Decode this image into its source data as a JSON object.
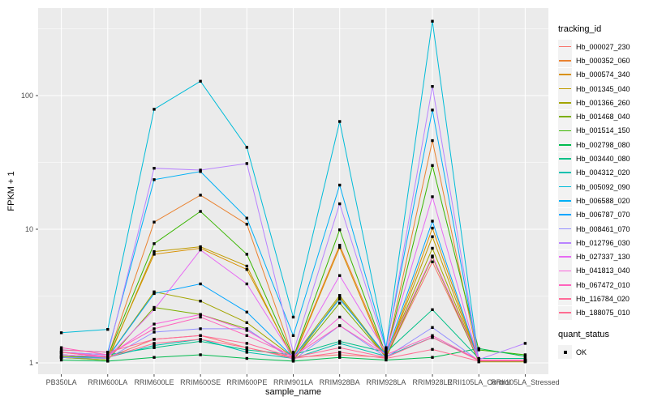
{
  "chart_data": {
    "type": "line",
    "title": "",
    "xlabel": "sample_name",
    "ylabel": "FPKM + 1",
    "y_scale": "log10",
    "y_ticks": [
      1,
      10,
      100
    ],
    "ylim": [
      0.82,
      450
    ],
    "grid": true,
    "legend_position": "right",
    "legend_title": "tracking_id",
    "panel_bg": "#EBEBEB",
    "grid_color": "#FFFFFF",
    "tick_text_color": "#4D4D4D",
    "point_color": "#000000",
    "point_shape": "square",
    "quant": {
      "title": "quant_status",
      "entries": [
        "OK"
      ]
    },
    "categories": [
      "PB350LA",
      "RRIM600LA",
      "RRIM600LE",
      "RRIM600SE",
      "RRIM600PE",
      "RRIM901LA",
      "RRIM928BA",
      "RRIM928LA",
      "RRIM928LE",
      "RRII105LA_Control",
      "RRII105LA_Stressed"
    ],
    "series": [
      {
        "name": "Hb_000027_230",
        "color": "#F8766D",
        "values": [
          1.2,
          1.1,
          1.5,
          1.6,
          1.3,
          1.1,
          1.15,
          1.1,
          5.7,
          1.05,
          1.05
        ]
      },
      {
        "name": "Hb_000352_060",
        "color": "#EA8331",
        "values": [
          1.15,
          1.1,
          11.3,
          18,
          10.9,
          1.1,
          7.6,
          1.15,
          46,
          1.03,
          1.03
        ]
      },
      {
        "name": "Hb_000574_340",
        "color": "#D89000",
        "values": [
          1.1,
          1.08,
          6.5,
          7.2,
          5.0,
          1.08,
          7.3,
          1.1,
          10.2,
          1.03,
          1.03
        ]
      },
      {
        "name": "Hb_001345_040",
        "color": "#C09B00",
        "values": [
          1.1,
          1.05,
          6.8,
          7.4,
          5.3,
          1.05,
          3.1,
          1.1,
          8.8,
          1.02,
          1.02
        ]
      },
      {
        "name": "Hb_001366_260",
        "color": "#A3A500",
        "values": [
          1.12,
          1.1,
          3.4,
          2.9,
          2.0,
          1.1,
          3.2,
          1.12,
          7.2,
          1.03,
          1.03
        ]
      },
      {
        "name": "Hb_001468_040",
        "color": "#7CAE00",
        "values": [
          1.1,
          1.05,
          2.6,
          2.3,
          1.8,
          1.05,
          2.8,
          1.1,
          6.2,
          1.02,
          1.02
        ]
      },
      {
        "name": "Hb_001514_150",
        "color": "#39B600",
        "values": [
          1.1,
          1.12,
          7.8,
          13.6,
          6.5,
          1.1,
          9.9,
          1.15,
          30,
          1.25,
          1.15
        ]
      },
      {
        "name": "Hb_002798_080",
        "color": "#00BB4E",
        "values": [
          1.05,
          1.03,
          1.1,
          1.15,
          1.08,
          1.03,
          1.1,
          1.05,
          1.1,
          1.28,
          1.12
        ]
      },
      {
        "name": "Hb_003440_080",
        "color": "#00C087",
        "values": [
          1.2,
          1.15,
          1.3,
          1.45,
          1.25,
          1.15,
          1.45,
          1.2,
          2.5,
          1.08,
          1.08
        ]
      },
      {
        "name": "Hb_004312_020",
        "color": "#00C0AF",
        "values": [
          1.1,
          1.1,
          1.35,
          1.5,
          1.2,
          1.08,
          1.4,
          1.12,
          1.55,
          1.05,
          1.05
        ]
      },
      {
        "name": "Hb_005092_090",
        "color": "#00BCD8",
        "values": [
          1.68,
          1.78,
          79,
          128,
          41,
          2.2,
          64,
          1.3,
          360,
          1.04,
          1.04
        ]
      },
      {
        "name": "Hb_006588_020",
        "color": "#00B0F6",
        "values": [
          1.25,
          1.2,
          23.5,
          27,
          12.1,
          1.6,
          21.4,
          1.3,
          78,
          1.05,
          1.05
        ]
      },
      {
        "name": "Hb_006787_070",
        "color": "#00A5FF",
        "values": [
          1.15,
          1.1,
          3.3,
          3.9,
          2.4,
          1.1,
          3.0,
          1.15,
          11.5,
          1.04,
          1.04
        ]
      },
      {
        "name": "Hb_008461_070",
        "color": "#9590FF",
        "values": [
          1.1,
          1.08,
          1.7,
          1.8,
          1.8,
          1.05,
          1.9,
          1.1,
          1.84,
          1.04,
          1.04
        ]
      },
      {
        "name": "Hb_012796_030",
        "color": "#B983FF",
        "values": [
          1.2,
          1.15,
          28.6,
          27.7,
          31,
          1.2,
          15.5,
          1.25,
          117,
          1.06,
          1.4
        ]
      },
      {
        "name": "Hb_027337_130",
        "color": "#E76BF3",
        "values": [
          1.15,
          1.1,
          2.5,
          7.0,
          3.9,
          1.1,
          4.5,
          1.2,
          17.5,
          1.04,
          1.04
        ]
      },
      {
        "name": "Hb_041813_040",
        "color": "#FA62DB",
        "values": [
          1.2,
          1.12,
          1.95,
          2.3,
          1.75,
          1.1,
          2.2,
          1.15,
          6.3,
          1.05,
          1.05
        ]
      },
      {
        "name": "Hb_067472_010",
        "color": "#FF62BC",
        "values": [
          1.3,
          1.15,
          1.8,
          2.2,
          1.6,
          1.12,
          1.9,
          1.15,
          1.6,
          1.05,
          1.05
        ]
      },
      {
        "name": "Hb_116784_020",
        "color": "#FF6A98",
        "values": [
          1.25,
          1.2,
          1.5,
          1.6,
          1.4,
          1.1,
          1.3,
          1.1,
          1.55,
          1.04,
          1.04
        ]
      },
      {
        "name": "Hb_188075_010",
        "color": "#FF6C91",
        "values": [
          1.2,
          1.1,
          1.4,
          1.5,
          1.3,
          1.08,
          1.2,
          1.08,
          1.26,
          1.03,
          1.03
        ]
      }
    ]
  }
}
